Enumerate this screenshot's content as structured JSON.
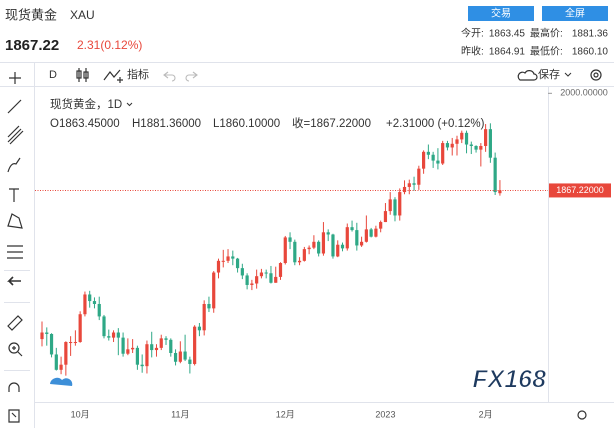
{
  "header": {
    "title": "现货黄金",
    "symbol": "XAU",
    "price": "1867.22",
    "change": "2.31(0.12%)",
    "buttons": [
      "交易",
      "全屏"
    ],
    "stats": [
      {
        "label": "今开:",
        "value": "1863.45"
      },
      {
        "label": "最高价:",
        "value": "1881.36"
      },
      {
        "label": "昨收:",
        "value": "1864.91"
      },
      {
        "label": "最低价:",
        "value": "1860.10"
      }
    ]
  },
  "toolbar": {
    "interval": "D",
    "indicator": "指标",
    "save": "保存"
  },
  "chart_data": {
    "type": "candlestick",
    "legend": {
      "name": "现货黄金，1D",
      "open": "O1863.45000",
      "high": "H1881.36000",
      "low": "L1860.10000",
      "close": "收=1867.22000",
      "change": "+2.31000 (+0.12%)"
    },
    "up_color": "#e8473b",
    "down_color": "#2ea886",
    "ylim": [
      1578,
      2010
    ],
    "yticks": [
      {
        "value": 2000,
        "label": "2000.00000"
      }
    ],
    "last_price": {
      "value": 1867.22,
      "label": "1867.22000"
    },
    "watermark": "FX168",
    "categories": [
      null,
      null,
      null,
      null,
      null,
      null,
      null,
      null,
      "10月",
      null,
      null,
      null,
      null,
      null,
      null,
      null,
      null,
      null,
      null,
      null,
      null,
      null,
      null,
      null,
      null,
      null,
      null,
      null,
      null,
      "11月",
      null,
      null,
      null,
      null,
      null,
      null,
      null,
      null,
      null,
      null,
      null,
      null,
      null,
      null,
      null,
      null,
      null,
      null,
      null,
      null,
      null,
      "12月",
      null,
      null,
      null,
      null,
      null,
      null,
      null,
      null,
      null,
      null,
      null,
      null,
      null,
      null,
      null,
      null,
      null,
      null,
      null,
      null,
      "2023",
      null,
      null,
      null,
      null,
      null,
      null,
      null,
      null,
      null,
      null,
      null,
      null,
      null,
      null,
      null,
      null,
      null,
      null,
      null,
      null,
      "2月",
      null,
      null,
      null
    ],
    "ohlc": [
      [
        1664,
        1688,
        1654,
        1673
      ],
      [
        1673,
        1680,
        1655,
        1671
      ],
      [
        1671,
        1672,
        1639,
        1643
      ],
      [
        1643,
        1652,
        1621,
        1622
      ],
      [
        1622,
        1640,
        1616,
        1629
      ],
      [
        1629,
        1661,
        1614,
        1660
      ],
      [
        1660,
        1668,
        1641,
        1660
      ],
      [
        1660,
        1676,
        1655,
        1660
      ],
      [
        1660,
        1702,
        1659,
        1698
      ],
      [
        1698,
        1729,
        1695,
        1725
      ],
      [
        1725,
        1730,
        1707,
        1716
      ],
      [
        1716,
        1721,
        1706,
        1712
      ],
      [
        1712,
        1722,
        1690,
        1695
      ],
      [
        1695,
        1697,
        1665,
        1668
      ],
      [
        1668,
        1677,
        1662,
        1666
      ],
      [
        1666,
        1676,
        1660,
        1673
      ],
      [
        1673,
        1679,
        1642,
        1666
      ],
      [
        1666,
        1673,
        1640,
        1644
      ],
      [
        1644,
        1665,
        1642,
        1650
      ],
      [
        1650,
        1664,
        1645,
        1652
      ],
      [
        1652,
        1655,
        1622,
        1629
      ],
      [
        1629,
        1643,
        1618,
        1627
      ],
      [
        1627,
        1662,
        1617,
        1657
      ],
      [
        1657,
        1674,
        1639,
        1649
      ],
      [
        1649,
        1657,
        1640,
        1652
      ],
      [
        1652,
        1670,
        1649,
        1665
      ],
      [
        1665,
        1668,
        1656,
        1663
      ],
      [
        1663,
        1665,
        1640,
        1645
      ],
      [
        1645,
        1650,
        1628,
        1633
      ],
      [
        1633,
        1661,
        1631,
        1647
      ],
      [
        1647,
        1670,
        1634,
        1636
      ],
      [
        1636,
        1640,
        1617,
        1630
      ],
      [
        1630,
        1683,
        1628,
        1681
      ],
      [
        1681,
        1686,
        1668,
        1676
      ],
      [
        1676,
        1717,
        1669,
        1712
      ],
      [
        1712,
        1722,
        1701,
        1706
      ],
      [
        1706,
        1757,
        1700,
        1755
      ],
      [
        1755,
        1774,
        1747,
        1771
      ],
      [
        1771,
        1786,
        1762,
        1771
      ],
      [
        1771,
        1787,
        1768,
        1777
      ],
      [
        1777,
        1785,
        1765,
        1774
      ],
      [
        1774,
        1775,
        1755,
        1761
      ],
      [
        1761,
        1767,
        1746,
        1751
      ],
      [
        1751,
        1754,
        1732,
        1738
      ],
      [
        1738,
        1745,
        1731,
        1740
      ],
      [
        1740,
        1759,
        1733,
        1750
      ],
      [
        1750,
        1760,
        1747,
        1755
      ],
      [
        1755,
        1759,
        1747,
        1754
      ],
      [
        1754,
        1764,
        1740,
        1741
      ],
      [
        1741,
        1763,
        1741,
        1749
      ],
      [
        1749,
        1769,
        1745,
        1768
      ],
      [
        1768,
        1805,
        1766,
        1803
      ],
      [
        1803,
        1810,
        1787,
        1797
      ],
      [
        1797,
        1800,
        1765,
        1769
      ],
      [
        1769,
        1776,
        1765,
        1771
      ],
      [
        1771,
        1790,
        1770,
        1787
      ],
      [
        1787,
        1792,
        1780,
        1789
      ],
      [
        1789,
        1806,
        1787,
        1797
      ],
      [
        1797,
        1799,
        1777,
        1781
      ],
      [
        1781,
        1824,
        1778,
        1810
      ],
      [
        1810,
        1814,
        1798,
        1807
      ],
      [
        1807,
        1808,
        1774,
        1777
      ],
      [
        1777,
        1799,
        1776,
        1793
      ],
      [
        1793,
        1796,
        1784,
        1788
      ],
      [
        1788,
        1822,
        1785,
        1817
      ],
      [
        1817,
        1826,
        1811,
        1813
      ],
      [
        1813,
        1823,
        1785,
        1792
      ],
      [
        1792,
        1804,
        1790,
        1797
      ],
      [
        1797,
        1833,
        1796,
        1814
      ],
      [
        1814,
        1816,
        1803,
        1804
      ],
      [
        1804,
        1819,
        1803,
        1815
      ],
      [
        1815,
        1826,
        1810,
        1824
      ],
      [
        1824,
        1850,
        1824,
        1839
      ],
      [
        1839,
        1865,
        1834,
        1855
      ],
      [
        1855,
        1858,
        1825,
        1833
      ],
      [
        1833,
        1870,
        1826,
        1865
      ],
      [
        1865,
        1881,
        1862,
        1872
      ],
      [
        1872,
        1882,
        1862,
        1877
      ],
      [
        1877,
        1886,
        1867,
        1875
      ],
      [
        1875,
        1901,
        1868,
        1897
      ],
      [
        1897,
        1922,
        1890,
        1920
      ],
      [
        1920,
        1930,
        1910,
        1916
      ],
      [
        1916,
        1920,
        1898,
        1908
      ],
      [
        1908,
        1925,
        1896,
        1904
      ],
      [
        1904,
        1935,
        1902,
        1932
      ],
      [
        1932,
        1935,
        1922,
        1926
      ],
      [
        1926,
        1939,
        1915,
        1931
      ],
      [
        1931,
        1942,
        1915,
        1937
      ],
      [
        1937,
        1949,
        1932,
        1946
      ],
      [
        1946,
        1949,
        1918,
        1930
      ],
      [
        1930,
        1934,
        1917,
        1928
      ],
      [
        1928,
        1929,
        1919,
        1923
      ],
      [
        1923,
        1932,
        1900,
        1928
      ],
      [
        1928,
        1958,
        1920,
        1951
      ],
      [
        1951,
        1959,
        1905,
        1912
      ],
      [
        1912,
        1919,
        1861,
        1865
      ],
      [
        1863.45,
        1881.36,
        1860.1,
        1867.22
      ]
    ]
  }
}
